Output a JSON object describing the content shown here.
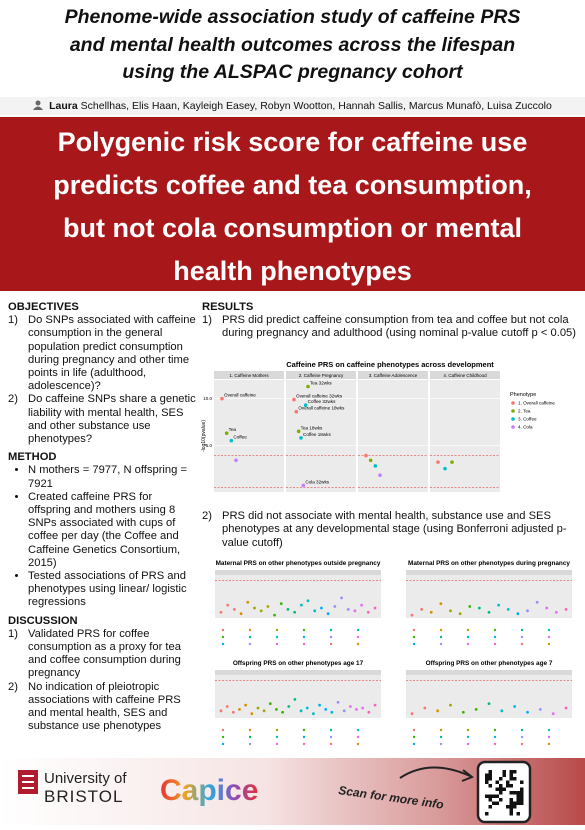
{
  "header": {
    "title": [
      "Phenome-wide association study of caffeine PRS",
      "and mental health outcomes across the lifespan",
      "using the ALSPAC pregnancy cohort"
    ],
    "lead_author": "Laura",
    "authors": "Schellhas, Elis Haan, Kayleigh Easey, Robyn Wootton, Hannah Sallis, Marcus Munafò, Luisa Zuccolo"
  },
  "banner": [
    "Polygenic risk score for caffeine use",
    "predicts coffee and tea consumption,",
    "but not cola consumption or mental",
    "health phenotypes"
  ],
  "left": {
    "objectives": {
      "heading": "OBJECTIVES",
      "items": [
        {
          "num": "1)",
          "text": "Do SNPs associated with caffeine consumption in the general population predict consumption during pregnancy and other time points in life (adulthood, adolescence)?"
        },
        {
          "num": "2)",
          "text": "Do caffeine SNPs share a genetic liability with mental health, SES and other substance use phenotypes?"
        }
      ]
    },
    "method": {
      "heading": "METHOD",
      "items": [
        "N mothers = 7977, N offspring = 7921",
        "Created caffeine PRS for offspring and mothers using 8 SNPs associated with cups of coffee per day (the Coffee and Caffeine Genetics Consortium, 2015)",
        "Tested associations of PRS and phenotypes using linear/ logistic regressions"
      ]
    },
    "discussion": {
      "heading": "DISCUSSION",
      "items": [
        {
          "num": "1)",
          "text": "Validated PRS for coffee consumption as a proxy for tea and coffee consumption during pregnancy"
        },
        {
          "num": "2)",
          "text": "No indication of pleiotropic associations with caffeine PRS and mental health, SES and substance use phenotypes"
        }
      ]
    }
  },
  "results": {
    "heading": "RESULTS",
    "items": [
      {
        "num": "1)",
        "text": "PRS did predict caffeine consumption from tea and coffee but not cola during pregnancy and adulthood (using nominal p-value cutoff p < 0.05)"
      },
      {
        "num": "2)",
        "text": "PRS did not associate with mental health, substance use and SES phenotypes at any developmental stage (using Bonferroni adjusted p-value cutoff)"
      }
    ]
  },
  "chart_data": [
    {
      "type": "scatter",
      "title": "Caffeine PRS on caffeine phenotypes across development",
      "y_label": "-log10(pvalue)",
      "ylim": [
        0,
        12
      ],
      "yticks": [
        {
          "value": 5,
          "label": "5.0"
        },
        {
          "value": 10,
          "label": "10.0"
        }
      ],
      "reference_lines": [
        0.5,
        3.9
      ],
      "panels": [
        "1. Caffeine Mothers",
        "2. Caffeine Pregnancy",
        "3. Caffeine Adolescence",
        "4. Caffeine Childhood"
      ],
      "legend_title": "Phenotype",
      "series": [
        {
          "name": "1. Overall caffeine",
          "color": "#f8766d"
        },
        {
          "name": "2. Tea",
          "color": "#7cae00"
        },
        {
          "name": "3. Coffee",
          "color": "#00bfc4"
        },
        {
          "name": "4. Cola",
          "color": "#c77cff"
        }
      ],
      "points": [
        {
          "panel": 0,
          "series": 0,
          "y": 10,
          "label": "Overall caffeine"
        },
        {
          "panel": 0,
          "series": 1,
          "y": 6.3,
          "label": "Tea"
        },
        {
          "panel": 0,
          "series": 2,
          "y": 5.5,
          "label": "Coffee"
        },
        {
          "panel": 0,
          "series": 3,
          "y": 3.4
        },
        {
          "panel": 1,
          "series": 0,
          "y": 9.9,
          "label": "Overall caffeine 32wks"
        },
        {
          "panel": 1,
          "series": 0,
          "y": 8.6,
          "label": "Overall caffeine 18wks"
        },
        {
          "panel": 1,
          "series": 1,
          "y": 6.5,
          "label": "Tea 18wks"
        },
        {
          "panel": 1,
          "series": 2,
          "y": 5.8,
          "label": "Coffee 18wks"
        },
        {
          "panel": 1,
          "series": 3,
          "y": 0.7,
          "label": "Cola 32wks"
        },
        {
          "panel": 1,
          "series": 2,
          "y": 9.3,
          "label": "Coffee 32wks"
        },
        {
          "panel": 1,
          "series": 1,
          "y": 11.3,
          "label": "Tea 32wks"
        },
        {
          "panel": 2,
          "series": 0,
          "y": 3.9
        },
        {
          "panel": 2,
          "series": 1,
          "y": 3.4
        },
        {
          "panel": 2,
          "series": 2,
          "y": 2.8
        },
        {
          "panel": 2,
          "series": 3,
          "y": 1.8
        },
        {
          "panel": 3,
          "series": 0,
          "y": 3.2
        },
        {
          "panel": 3,
          "series": 2,
          "y": 2.5
        },
        {
          "panel": 3,
          "series": 1,
          "y": 3.2
        }
      ]
    },
    {
      "type": "scatter",
      "title": "Maternal PRS on other phenotypes outside pregnancy",
      "ylim": [
        0,
        3
      ],
      "reference_lines": [
        2.6
      ],
      "palette": [
        "#f8766d",
        "#d89000",
        "#a3a500",
        "#39b600",
        "#00bf7d",
        "#00bfc4",
        "#00b0f6",
        "#9590ff",
        "#e76bf3",
        "#ff62bc"
      ],
      "values": [
        0.4,
        0.9,
        0.6,
        0.3,
        1.1,
        0.7,
        0.5,
        0.8,
        0.2,
        1.0,
        0.6,
        0.4,
        0.9,
        1.2,
        0.5,
        0.7,
        0.3,
        0.8,
        1.4,
        0.6,
        0.5,
        0.9,
        0.4,
        0.7
      ]
    },
    {
      "type": "scatter",
      "title": "Maternal PRS on other phenotypes during pregnancy",
      "ylim": [
        0,
        3
      ],
      "reference_lines": [
        2.6
      ],
      "palette": [
        "#f8766d",
        "#d89000",
        "#a3a500",
        "#39b600",
        "#00bf7d",
        "#00bfc4",
        "#00b0f6",
        "#9590ff",
        "#e76bf3",
        "#ff62bc"
      ],
      "values": [
        0.2,
        0.6,
        0.4,
        1.0,
        0.5,
        0.3,
        0.8,
        0.7,
        0.4,
        0.9,
        0.6,
        0.3,
        0.5,
        1.1,
        0.7,
        0.4,
        0.6
      ]
    },
    {
      "type": "scatter",
      "title": "Offspring PRS on other phenotypes age 17",
      "ylim": [
        0,
        3
      ],
      "reference_lines": [
        2.6
      ],
      "palette": [
        "#f8766d",
        "#d89000",
        "#a3a500",
        "#39b600",
        "#00bf7d",
        "#00bfc4",
        "#00b0f6",
        "#9590ff",
        "#e76bf3",
        "#ff62bc"
      ],
      "values": [
        0.5,
        0.8,
        0.4,
        0.6,
        0.9,
        0.3,
        0.7,
        0.5,
        1.0,
        0.6,
        0.4,
        0.8,
        1.3,
        0.5,
        0.7,
        0.3,
        0.9,
        0.6,
        0.4,
        1.1,
        0.5,
        0.8,
        0.6,
        0.7,
        0.4,
        0.9
      ]
    },
    {
      "type": "scatter",
      "title": "Offspring PRS on other phenotypes age 7",
      "ylim": [
        0,
        3
      ],
      "reference_lines": [
        2.6
      ],
      "palette": [
        "#f8766d",
        "#d89000",
        "#a3a500",
        "#39b600",
        "#00bf7d",
        "#00bfc4",
        "#00b0f6",
        "#9590ff",
        "#e76bf3",
        "#ff62bc"
      ],
      "values": [
        0.3,
        0.7,
        0.5,
        0.9,
        0.4,
        0.6,
        1.0,
        0.5,
        0.8,
        0.4,
        0.6,
        0.3,
        0.7
      ]
    }
  ],
  "footer": {
    "university_top": "University of",
    "university_bottom": "BRISTOL",
    "project": "Capice",
    "scan": "Scan for more info"
  }
}
